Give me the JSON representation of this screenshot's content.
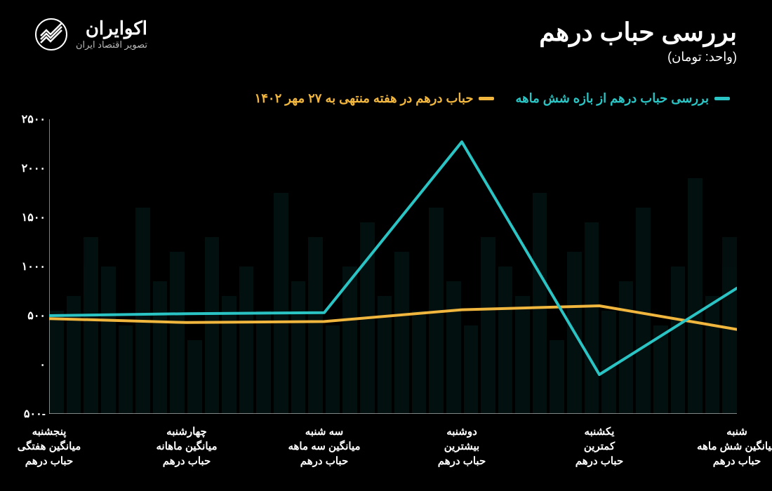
{
  "header": {
    "title": "بررسی  حباب درهم",
    "subtitle": "(واحد: تومان)"
  },
  "logo": {
    "main": "اکوایران",
    "sub": "تصویر اقتصاد ایران"
  },
  "legend": {
    "series1": {
      "label": "بررسی حباب درهم از بازه شش ماهه",
      "color": "#2bc4c4"
    },
    "series2": {
      "label": "حباب درهم در هفته منتهی  به ۲۷ مهر ۱۴۰۲",
      "color": "#f0b63d"
    }
  },
  "chart": {
    "type": "line",
    "background_color": "#000000",
    "grid_color": "#333333",
    "text_color": "#ffffff",
    "ylim": [
      -500,
      2500
    ],
    "ytick_step": 500,
    "yticks": [
      "-۵۰۰",
      "۰",
      "۵۰۰",
      "۱۰۰۰",
      "۱۵۰۰",
      "۲۰۰۰",
      "۲۵۰۰"
    ],
    "ytick_values": [
      -500,
      0,
      500,
      1000,
      1500,
      2000,
      2500
    ],
    "line_width": 4,
    "categories": [
      "شنبه\nمیانگین شش ماهه\nحباب درهم",
      "یکشنبه\nکمترین\nحباب درهم",
      "دوشنبه\nبیشترین\nحباب درهم",
      "سه شنبه\nمیانگین سه ماهه\nحباب درهم",
      "چهارشنبه\nمیانگین ماهانه\nحباب درهم",
      "پنجشنبه\nمیانگین هفتگی\nحباب درهم"
    ],
    "series1": {
      "color": "#2bc4c4",
      "values": [
        780,
        -100,
        2270,
        530,
        520,
        500
      ]
    },
    "series2": {
      "color": "#f0b63d",
      "values": [
        360,
        600,
        560,
        440,
        430,
        470
      ]
    }
  }
}
